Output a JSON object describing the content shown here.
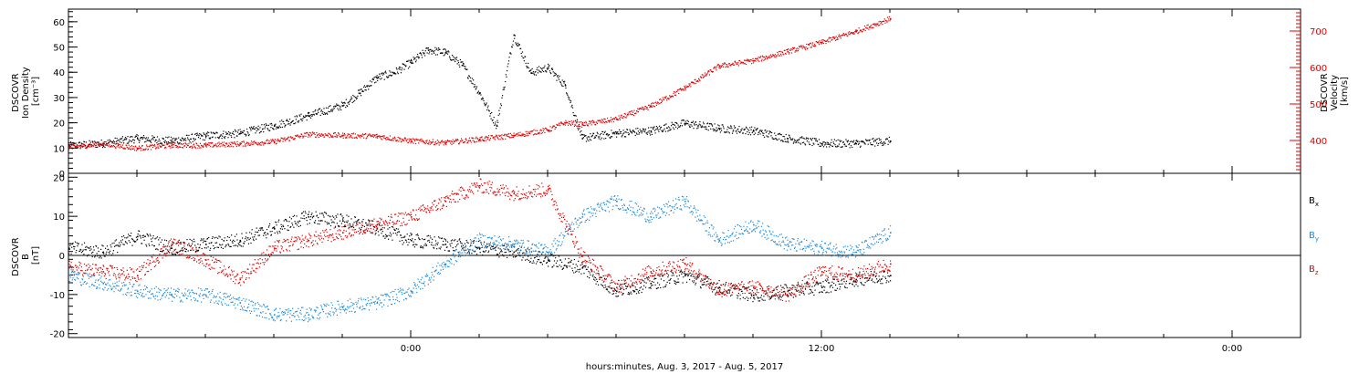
{
  "xlabel": "hours:minutes, Aug.  3, 2017 - Aug.  5, 2017",
  "x_tick_labels": [
    "0:00",
    "12:00",
    "0:00"
  ],
  "chart_data": [
    {
      "type": "scatter",
      "title": "",
      "x_unit": "hours relative to 2017-08-04 00:00",
      "xlim": [
        -10,
        26
      ],
      "grid": false,
      "legend": "none",
      "left_axis": {
        "label_lines": [
          "DSCOVR",
          "Ion Density",
          "[cm⁻³]"
        ],
        "ylim": [
          0,
          65
        ],
        "ticks": [
          0,
          10,
          20,
          30,
          40,
          50,
          60
        ],
        "color": "#000000"
      },
      "right_axis": {
        "label_lines": [
          "DSCOVR",
          "Velocity",
          "[km/s]"
        ],
        "ylim": [
          310,
          760
        ],
        "ticks": [
          400,
          500,
          600,
          700
        ],
        "color": "#e00000"
      },
      "series": [
        {
          "axis": "left",
          "color": "#000000",
          "x": [
            -10,
            -9,
            -8,
            -7,
            -6,
            -5,
            -4,
            -3,
            -2,
            -1.5,
            -1,
            -0.5,
            0,
            0.5,
            1,
            1.5,
            2,
            2.5,
            3,
            3.5,
            4,
            4.5,
            5,
            6,
            7,
            8,
            9,
            10,
            11,
            12,
            13,
            14
          ],
          "y": [
            11,
            12,
            14,
            13,
            15,
            16,
            19,
            23,
            27,
            32,
            38,
            40,
            44,
            49,
            48,
            43,
            32,
            19,
            55,
            40,
            42,
            35,
            14,
            16,
            17,
            20,
            18,
            17,
            14,
            12,
            12,
            13
          ]
        },
        {
          "axis": "right",
          "color": "#e00000",
          "x": [
            -10,
            -9,
            -8,
            -7,
            -6,
            -5,
            -4,
            -3,
            -2,
            -1,
            0,
            1,
            2,
            3,
            4,
            4.5,
            5,
            6,
            7,
            8,
            9,
            10,
            11,
            12,
            13,
            14
          ],
          "y": [
            383,
            392,
            380,
            388,
            388,
            392,
            398,
            418,
            415,
            413,
            400,
            395,
            405,
            415,
            430,
            450,
            445,
            460,
            495,
            545,
            605,
            620,
            645,
            670,
            700,
            735
          ]
        }
      ]
    },
    {
      "type": "scatter",
      "title": "",
      "x_unit": "hours relative to 2017-08-04 00:00",
      "xlim": [
        -10,
        26
      ],
      "grid": false,
      "legend": "right",
      "left_axis": {
        "label_lines": [
          "DSCOVR",
          "B",
          "[nT]"
        ],
        "ylim": [
          -21,
          21
        ],
        "ticks": [
          -20,
          -10,
          0,
          10,
          20
        ],
        "color": "#000000"
      },
      "zero_line": true,
      "series": [
        {
          "name": "B",
          "subscript": "x",
          "color": "#000000",
          "x": [
            -10,
            -9,
            -8,
            -7,
            -6,
            -5,
            -4,
            -3,
            -2,
            -1,
            0,
            1,
            2,
            3,
            4,
            5,
            6,
            7,
            8,
            9,
            10,
            11,
            12,
            13,
            14
          ],
          "y": [
            2,
            1,
            5,
            2,
            3,
            4,
            7,
            10,
            9,
            7,
            4,
            3,
            2,
            1,
            -1,
            -3,
            -9,
            -7,
            -5,
            -8,
            -10,
            -9,
            -8,
            -6,
            -5
          ]
        },
        {
          "name": "B",
          "subscript": "y",
          "color": "#1e8ad9",
          "x": [
            -10,
            -9,
            -8,
            -7,
            -6,
            -5,
            -4,
            -3,
            -2,
            -1,
            0,
            1,
            2,
            3,
            4,
            5,
            6,
            7,
            8,
            9,
            10,
            11,
            12,
            13,
            14
          ],
          "y": [
            -5,
            -7,
            -9,
            -10,
            -10,
            -12,
            -15,
            -15,
            -13,
            -12,
            -9,
            -2,
            4,
            3,
            1,
            10,
            14,
            10,
            14,
            4,
            8,
            3,
            2,
            1,
            6
          ]
        },
        {
          "name": "B",
          "subscript": "z",
          "color": "#e00000",
          "x": [
            -10,
            -9,
            -8,
            -7,
            -6,
            -5,
            -4,
            -3,
            -2,
            -1,
            0,
            1,
            2,
            3,
            4,
            5,
            6,
            7,
            8,
            9,
            10,
            11,
            12,
            13,
            14
          ],
          "y": [
            -3,
            -4,
            -5,
            3,
            -1,
            -6,
            2,
            4,
            6,
            8,
            10,
            14,
            18,
            16,
            17,
            0,
            -8,
            -4,
            -2,
            -9,
            -8,
            -10,
            -4,
            -5,
            -2
          ]
        }
      ]
    }
  ]
}
